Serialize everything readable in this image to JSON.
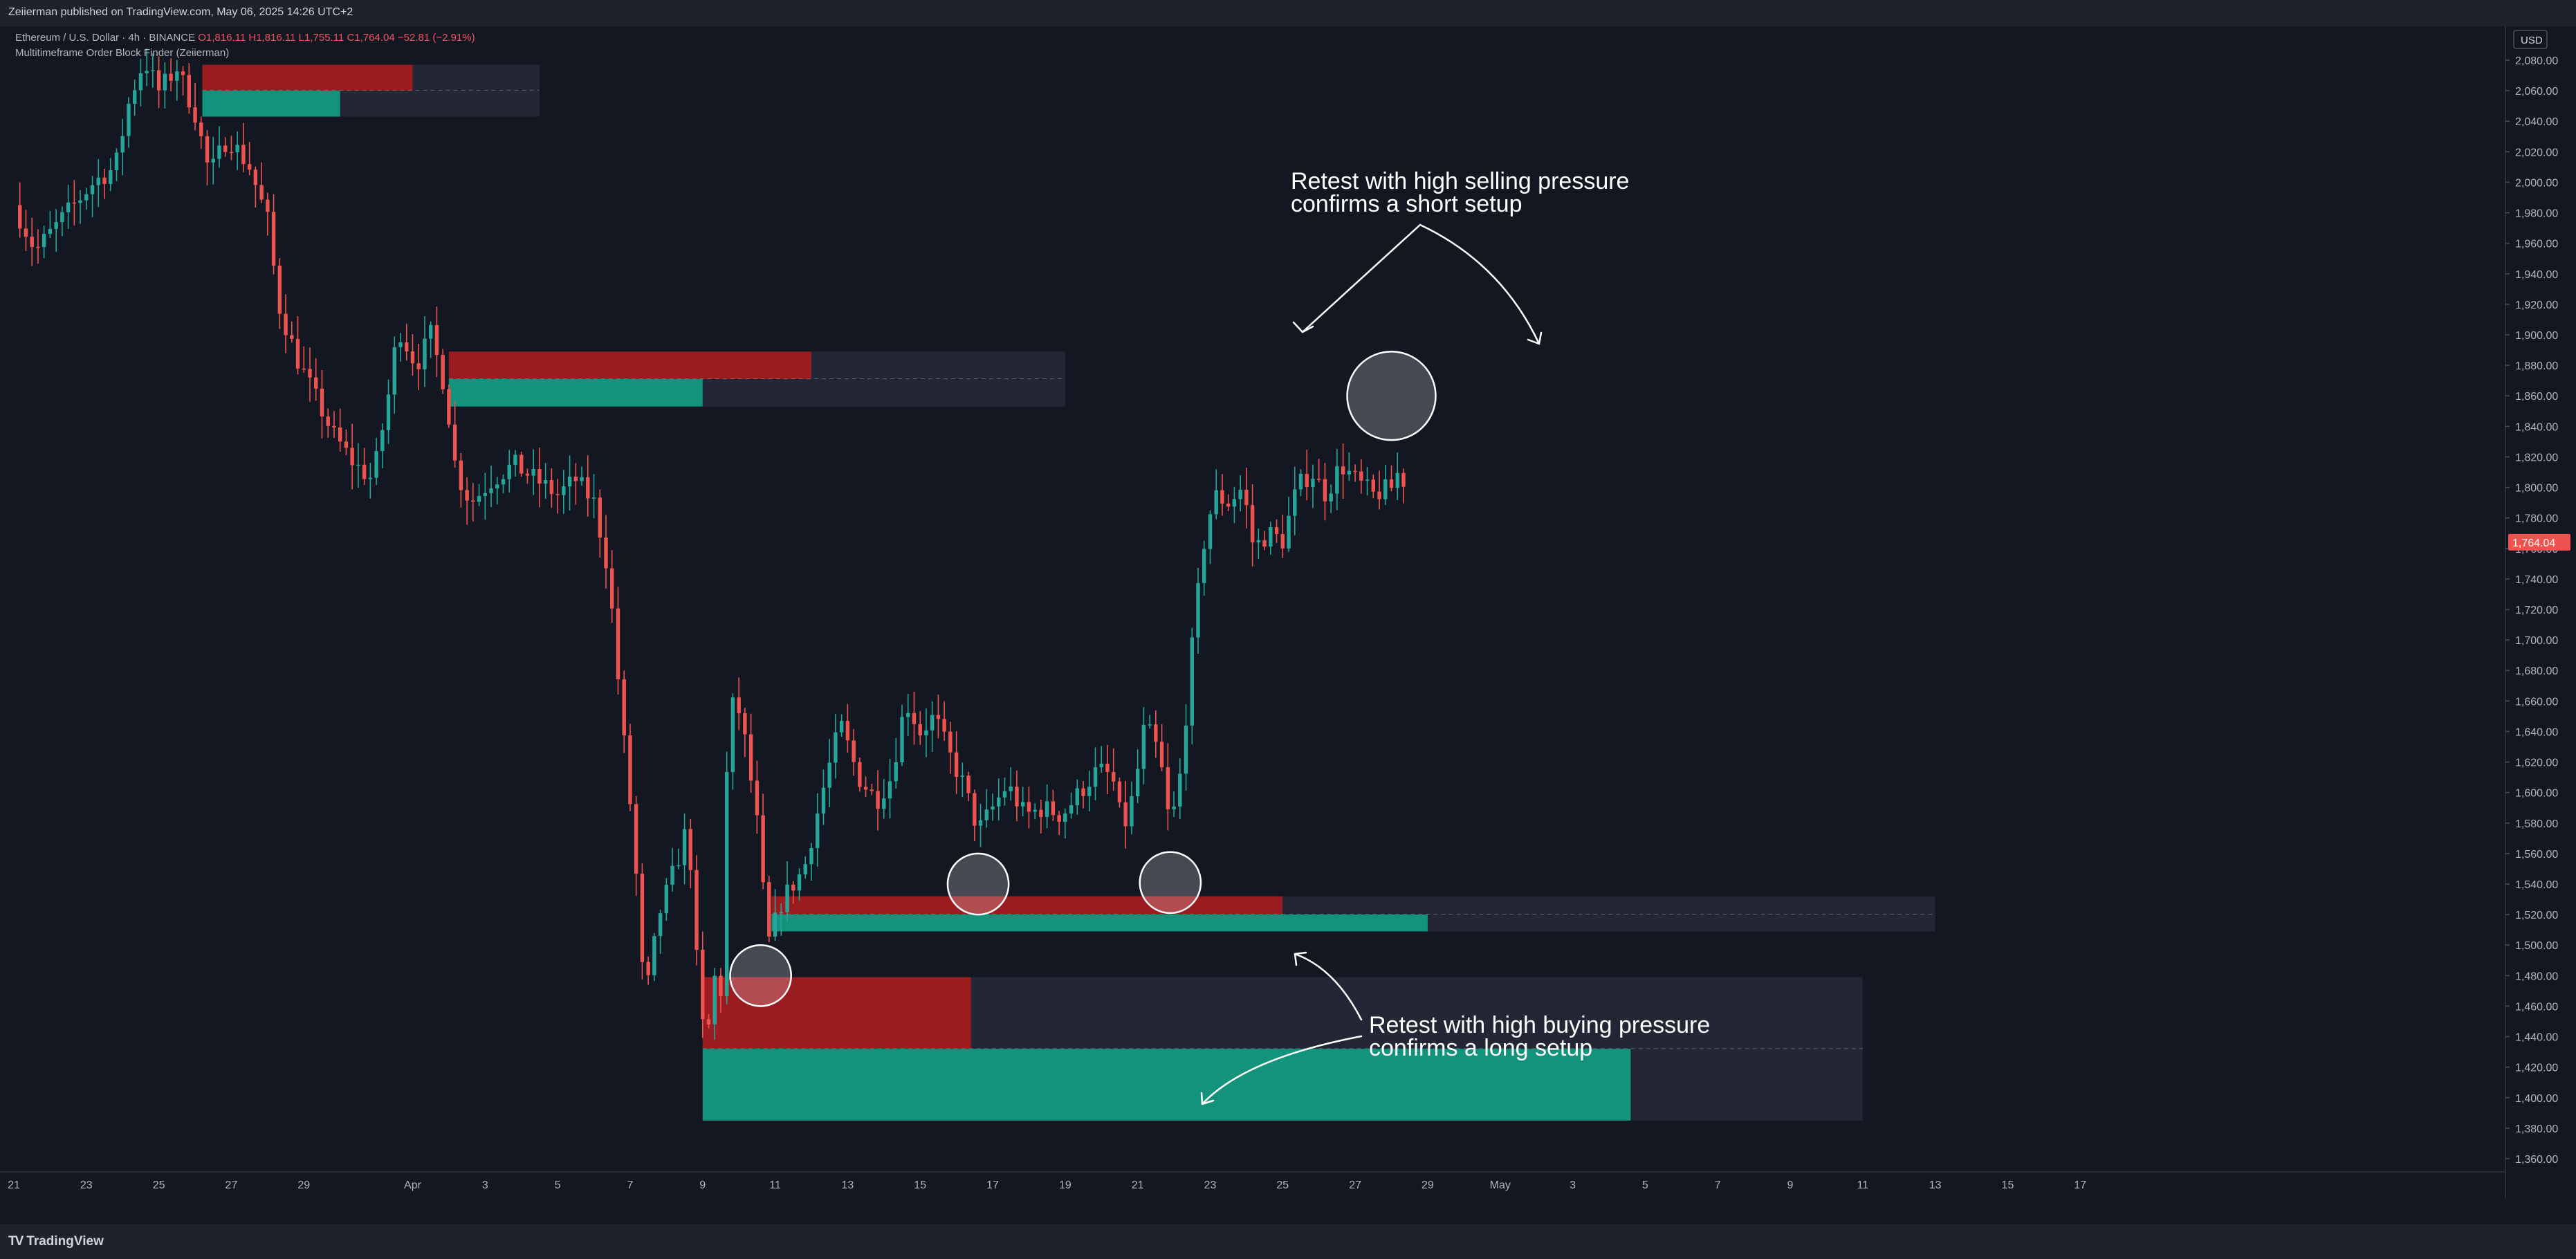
{
  "header": {
    "publisher_line": "Zeiierman published on TradingView.com, May 06, 2025 14:26 UTC+2"
  },
  "legend": {
    "symbol_line_prefix": "Ethereum / U.S. Dollar · 4h · BINANCE",
    "open": "O1,816.11",
    "high": "H1,816.11",
    "low": "L1,755.11",
    "close": "C1,764.04",
    "change": "−52.81 (−2.91%)",
    "indicator_name": "Multitimeframe Order Block Finder (Zeiierman)"
  },
  "annotations": {
    "short_setup": "Retest with high selling pressure\nconfirms a short setup",
    "long_setup": "Retest with high buying pressure\nconfirms a long setup"
  },
  "footer": {
    "brand": "TradingView",
    "brand_logo": "TV"
  },
  "colors": {
    "background": "#131722",
    "bull": "#26a69a",
    "bear": "#ef5350",
    "ob_bear": "#9b1c20",
    "ob_bull": "#13937b",
    "ob_zone": "#242736"
  },
  "chart_data": {
    "type": "candlestick",
    "symbol": "Ethereum / U.S. Dollar",
    "interval": "4h",
    "exchange": "BINANCE",
    "currency": "USD",
    "current_price": "1,764.04",
    "ylim": [
      1350,
      2090
    ],
    "y_ticks": [
      1360,
      1380,
      1400,
      1420,
      1440,
      1460,
      1480,
      1500,
      1520,
      1540,
      1560,
      1580,
      1600,
      1620,
      1640,
      1660,
      1680,
      1700,
      1720,
      1740,
      1760,
      1780,
      1800,
      1820,
      1840,
      1860,
      1880,
      1900,
      1920,
      1940,
      1960,
      1980,
      2000,
      2020,
      2040,
      2060,
      2080
    ],
    "x_ticks": [
      {
        "label": "21",
        "day": 21
      },
      {
        "label": "23",
        "day": 23
      },
      {
        "label": "25",
        "day": 25
      },
      {
        "label": "27",
        "day": 27
      },
      {
        "label": "29",
        "day": 29
      },
      {
        "label": "Apr",
        "day": 32
      },
      {
        "label": "3",
        "day": 34
      },
      {
        "label": "5",
        "day": 36
      },
      {
        "label": "7",
        "day": 38
      },
      {
        "label": "9",
        "day": 40
      },
      {
        "label": "11",
        "day": 42
      },
      {
        "label": "13",
        "day": 44
      },
      {
        "label": "15",
        "day": 46
      },
      {
        "label": "17",
        "day": 48
      },
      {
        "label": "19",
        "day": 50
      },
      {
        "label": "21",
        "day": 52
      },
      {
        "label": "23",
        "day": 54
      },
      {
        "label": "25",
        "day": 56
      },
      {
        "label": "27",
        "day": 58
      },
      {
        "label": "29",
        "day": 60
      },
      {
        "label": "May",
        "day": 62
      },
      {
        "label": "3",
        "day": 64
      },
      {
        "label": "5",
        "day": 66
      },
      {
        "label": "7",
        "day": 68
      },
      {
        "label": "9",
        "day": 70
      },
      {
        "label": "11",
        "day": 72
      },
      {
        "label": "13",
        "day": 74
      },
      {
        "label": "15",
        "day": 76
      },
      {
        "label": "17",
        "day": 78
      }
    ],
    "price_anchors": [
      {
        "day": 21.0,
        "price": 1985
      },
      {
        "day": 21.6,
        "price": 1955
      },
      {
        "day": 22.4,
        "price": 1978
      },
      {
        "day": 23.2,
        "price": 2000
      },
      {
        "day": 23.8,
        "price": 2010
      },
      {
        "day": 24.2,
        "price": 2055
      },
      {
        "day": 24.6,
        "price": 2080
      },
      {
        "day": 25.0,
        "price": 2060
      },
      {
        "day": 25.5,
        "price": 2075
      },
      {
        "day": 26.0,
        "price": 2045
      },
      {
        "day": 26.4,
        "price": 2005
      },
      {
        "day": 26.9,
        "price": 2030
      },
      {
        "day": 27.5,
        "price": 2010
      },
      {
        "day": 28.0,
        "price": 1975
      },
      {
        "day": 28.3,
        "price": 1920
      },
      {
        "day": 28.8,
        "price": 1885
      },
      {
        "day": 29.3,
        "price": 1860
      },
      {
        "day": 29.8,
        "price": 1835
      },
      {
        "day": 30.4,
        "price": 1815
      },
      {
        "day": 30.9,
        "price": 1805
      },
      {
        "day": 31.3,
        "price": 1855
      },
      {
        "day": 31.6,
        "price": 1905
      },
      {
        "day": 32.1,
        "price": 1880
      },
      {
        "day": 32.5,
        "price": 1900
      },
      {
        "day": 32.9,
        "price": 1865
      },
      {
        "day": 33.2,
        "price": 1810
      },
      {
        "day": 33.6,
        "price": 1790
      },
      {
        "day": 34.2,
        "price": 1805
      },
      {
        "day": 34.8,
        "price": 1815
      },
      {
        "day": 35.4,
        "price": 1805
      },
      {
        "day": 36.0,
        "price": 1795
      },
      {
        "day": 36.5,
        "price": 1805
      },
      {
        "day": 37.0,
        "price": 1790
      },
      {
        "day": 37.4,
        "price": 1745
      },
      {
        "day": 37.8,
        "price": 1640
      },
      {
        "day": 38.1,
        "price": 1570
      },
      {
        "day": 38.4,
        "price": 1460
      },
      {
        "day": 38.8,
        "price": 1520
      },
      {
        "day": 39.3,
        "price": 1555
      },
      {
        "day": 39.6,
        "price": 1580
      },
      {
        "day": 39.9,
        "price": 1465
      },
      {
        "day": 40.1,
        "price": 1430
      },
      {
        "day": 40.3,
        "price": 1480
      },
      {
        "day": 40.5,
        "price": 1470
      },
      {
        "day": 40.7,
        "price": 1640
      },
      {
        "day": 40.9,
        "price": 1665
      },
      {
        "day": 41.2,
        "price": 1630
      },
      {
        "day": 41.5,
        "price": 1580
      },
      {
        "day": 41.8,
        "price": 1500
      },
      {
        "day": 42.2,
        "price": 1530
      },
      {
        "day": 42.8,
        "price": 1550
      },
      {
        "day": 43.3,
        "price": 1600
      },
      {
        "day": 43.8,
        "price": 1645
      },
      {
        "day": 44.3,
        "price": 1610
      },
      {
        "day": 44.8,
        "price": 1595
      },
      {
        "day": 45.2,
        "price": 1610
      },
      {
        "day": 45.6,
        "price": 1660
      },
      {
        "day": 46.0,
        "price": 1640
      },
      {
        "day": 46.4,
        "price": 1650
      },
      {
        "day": 46.8,
        "price": 1625
      },
      {
        "day": 47.2,
        "price": 1605
      },
      {
        "day": 47.6,
        "price": 1575
      },
      {
        "day": 48.0,
        "price": 1590
      },
      {
        "day": 48.4,
        "price": 1605
      },
      {
        "day": 48.9,
        "price": 1585
      },
      {
        "day": 49.4,
        "price": 1590
      },
      {
        "day": 49.9,
        "price": 1585
      },
      {
        "day": 50.4,
        "price": 1600
      },
      {
        "day": 50.9,
        "price": 1615
      },
      {
        "day": 51.3,
        "price": 1610
      },
      {
        "day": 51.6,
        "price": 1575
      },
      {
        "day": 51.9,
        "price": 1600
      },
      {
        "day": 52.2,
        "price": 1645
      },
      {
        "day": 52.6,
        "price": 1625
      },
      {
        "day": 52.9,
        "price": 1575
      },
      {
        "day": 53.2,
        "price": 1615
      },
      {
        "day": 53.5,
        "price": 1695
      },
      {
        "day": 53.8,
        "price": 1760
      },
      {
        "day": 54.1,
        "price": 1795
      },
      {
        "day": 54.5,
        "price": 1790
      },
      {
        "day": 54.9,
        "price": 1800
      },
      {
        "day": 55.2,
        "price": 1760
      },
      {
        "day": 55.6,
        "price": 1770
      },
      {
        "day": 56.0,
        "price": 1765
      },
      {
        "day": 56.4,
        "price": 1800
      },
      {
        "day": 56.8,
        "price": 1810
      },
      {
        "day": 57.2,
        "price": 1795
      },
      {
        "day": 57.6,
        "price": 1815
      },
      {
        "day": 58.0,
        "price": 1805
      },
      {
        "day": 58.5,
        "price": 1795
      },
      {
        "day": 59.0,
        "price": 1800
      },
      {
        "day": 59.3,
        "price": 1816
      },
      {
        "day": 59.45,
        "price": 1764
      }
    ],
    "order_blocks": [
      {
        "day_start": 26.2,
        "day_fill_end": 32.0,
        "day_end": 35.5,
        "price_top": 2077,
        "price_bottom": 2060,
        "type": "bearish"
      },
      {
        "day_start": 26.2,
        "day_fill_end": 30.0,
        "day_end": 35.5,
        "price_top": 2060,
        "price_bottom": 2043,
        "type": "bullish"
      },
      {
        "day_start": 33.0,
        "day_fill_end": 43.0,
        "day_end": 50.0,
        "price_top": 1889,
        "price_bottom": 1871,
        "type": "bearish"
      },
      {
        "day_start": 33.0,
        "day_fill_end": 40.0,
        "day_end": 50.0,
        "price_top": 1871,
        "price_bottom": 1853,
        "type": "bullish"
      },
      {
        "day_start": 41.9,
        "day_fill_end": 56.0,
        "day_end": 74.0,
        "price_top": 1532,
        "price_bottom": 1520,
        "type": "bearish"
      },
      {
        "day_start": 41.9,
        "day_fill_end": 60.0,
        "day_end": 74.0,
        "price_top": 1520,
        "price_bottom": 1509,
        "type": "bullish"
      },
      {
        "day_start": 40.0,
        "day_fill_end": 47.4,
        "day_end": 72.0,
        "price_top": 1479,
        "price_bottom": 1432,
        "type": "bearish"
      },
      {
        "day_start": 40.0,
        "day_fill_end": 65.6,
        "day_end": 72.0,
        "price_top": 1432,
        "price_bottom": 1385,
        "type": "bullish"
      }
    ],
    "retest_markers": [
      {
        "day": 59.0,
        "price": 1860,
        "radius_price": 29
      },
      {
        "day": 47.6,
        "price": 1540,
        "radius_price": 20
      },
      {
        "day": 52.9,
        "price": 1541,
        "radius_price": 20
      },
      {
        "day": 41.6,
        "price": 1480,
        "radius_price": 20
      }
    ]
  }
}
